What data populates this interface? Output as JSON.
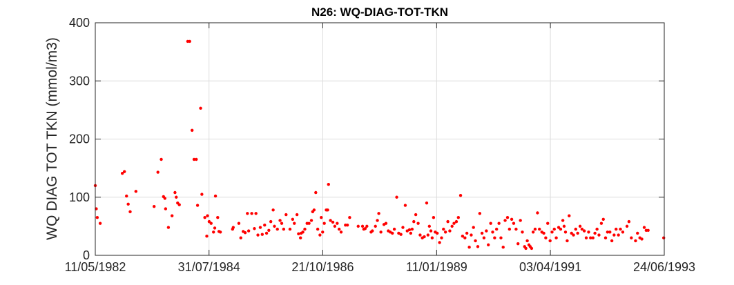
{
  "chart_data": {
    "type": "scatter",
    "title": "N26: WQ-DIAG-TOT-TKN",
    "xlabel": "",
    "ylabel": "WQ DIAG TOT TKN (mmol/m3)",
    "xlim": [
      "1982-05-11",
      "1993-06-24"
    ],
    "ylim": [
      0,
      400
    ],
    "x_ticks": [
      "11/05/1982",
      "31/07/1984",
      "21/10/1986",
      "11/01/1989",
      "03/04/1991",
      "24/06/1993"
    ],
    "y_ticks": [
      "0",
      "100",
      "200",
      "300",
      "400"
    ],
    "grid": true,
    "marker_color": "#ff0000",
    "series": [
      {
        "points": [
          [
            "1982-05-11",
            120
          ],
          [
            "1982-05-18",
            80
          ],
          [
            "1982-05-25",
            65
          ],
          [
            "1982-06-15",
            55
          ],
          [
            "1982-11-20",
            141
          ],
          [
            "1982-12-05",
            144
          ],
          [
            "1982-12-20",
            102
          ],
          [
            "1983-01-01",
            88
          ],
          [
            "1983-01-15",
            75
          ],
          [
            "1983-02-25",
            110
          ],
          [
            "1983-07-05",
            84
          ],
          [
            "1983-08-01",
            143
          ],
          [
            "1983-08-25",
            165
          ],
          [
            "1983-09-10",
            101
          ],
          [
            "1983-09-20",
            98
          ],
          [
            "1983-09-25",
            80
          ],
          [
            "1983-10-15",
            48
          ],
          [
            "1983-11-10",
            68
          ],
          [
            "1983-12-01",
            108
          ],
          [
            "1983-12-10",
            100
          ],
          [
            "1983-12-20",
            90
          ],
          [
            "1984-01-01",
            87
          ],
          [
            "1984-03-01",
            368
          ],
          [
            "1984-03-15",
            368
          ],
          [
            "1984-04-01",
            215
          ],
          [
            "1984-04-15",
            165
          ],
          [
            "1984-05-01",
            165
          ],
          [
            "1984-05-10",
            86
          ],
          [
            "1984-06-01",
            253
          ],
          [
            "1984-06-10",
            105
          ],
          [
            "1984-07-01",
            65
          ],
          [
            "1984-07-15",
            33
          ],
          [
            "1984-07-20",
            68
          ],
          [
            "1984-08-01",
            58
          ],
          [
            "1984-08-15",
            55
          ],
          [
            "1984-09-01",
            40
          ],
          [
            "1984-09-10",
            47
          ],
          [
            "1984-09-15",
            102
          ],
          [
            "1984-10-01",
            65
          ],
          [
            "1984-10-10",
            41
          ],
          [
            "1984-10-20",
            40
          ],
          [
            "1985-01-15",
            45
          ],
          [
            "1985-01-20",
            48
          ],
          [
            "1985-03-01",
            55
          ],
          [
            "1985-03-15",
            30
          ],
          [
            "1985-04-01",
            41
          ],
          [
            "1985-04-15",
            39
          ],
          [
            "1985-05-01",
            72
          ],
          [
            "1985-05-10",
            42
          ],
          [
            "1985-06-01",
            72
          ],
          [
            "1985-06-20",
            46
          ],
          [
            "1985-07-01",
            72
          ],
          [
            "1985-07-15",
            35
          ],
          [
            "1985-08-01",
            48
          ],
          [
            "1985-08-15",
            36
          ],
          [
            "1985-09-01",
            52
          ],
          [
            "1985-09-15",
            38
          ],
          [
            "1985-10-01",
            43
          ],
          [
            "1985-10-15",
            58
          ],
          [
            "1985-11-01",
            78
          ],
          [
            "1985-11-10",
            50
          ],
          [
            "1985-12-01",
            45
          ],
          [
            "1985-12-20",
            60
          ],
          [
            "1986-01-01",
            55
          ],
          [
            "1986-01-15",
            45
          ],
          [
            "1986-02-01",
            70
          ],
          [
            "1986-03-01",
            45
          ],
          [
            "1986-03-20",
            62
          ],
          [
            "1986-04-01",
            55
          ],
          [
            "1986-04-20",
            70
          ],
          [
            "1986-05-01",
            37
          ],
          [
            "1986-05-15",
            30
          ],
          [
            "1986-05-20",
            38
          ],
          [
            "1986-06-01",
            40
          ],
          [
            "1986-06-15",
            45
          ],
          [
            "1986-07-01",
            55
          ],
          [
            "1986-07-15",
            55
          ],
          [
            "1986-08-01",
            60
          ],
          [
            "1986-08-10",
            75
          ],
          [
            "1986-08-20",
            78
          ],
          [
            "1986-09-01",
            108
          ],
          [
            "1986-09-15",
            45
          ],
          [
            "1986-10-01",
            35
          ],
          [
            "1986-10-10",
            65
          ],
          [
            "1986-10-20",
            40
          ],
          [
            "1986-11-01",
            55
          ],
          [
            "1986-11-15",
            78
          ],
          [
            "1986-11-25",
            78
          ],
          [
            "1986-12-01",
            122
          ],
          [
            "1986-12-15",
            60
          ],
          [
            "1987-01-01",
            57
          ],
          [
            "1987-01-15",
            50
          ],
          [
            "1987-02-01",
            55
          ],
          [
            "1987-02-15",
            45
          ],
          [
            "1987-03-01",
            40
          ],
          [
            "1987-04-01",
            52
          ],
          [
            "1987-04-15",
            52
          ],
          [
            "1987-05-01",
            65
          ],
          [
            "1987-07-01",
            50
          ],
          [
            "1987-08-01",
            50
          ],
          [
            "1987-08-10",
            45
          ],
          [
            "1987-08-20",
            46
          ],
          [
            "1987-09-01",
            50
          ],
          [
            "1987-10-01",
            40
          ],
          [
            "1987-10-10",
            42
          ],
          [
            "1987-11-01",
            50
          ],
          [
            "1987-11-15",
            60
          ],
          [
            "1987-11-25",
            72
          ],
          [
            "1987-12-10",
            40
          ],
          [
            "1988-01-01",
            53
          ],
          [
            "1988-01-15",
            55
          ],
          [
            "1988-02-01",
            42
          ],
          [
            "1988-02-15",
            40
          ],
          [
            "1988-03-01",
            38
          ],
          [
            "1988-03-15",
            45
          ],
          [
            "1988-04-01",
            100
          ],
          [
            "1988-04-15",
            38
          ],
          [
            "1988-05-01",
            36
          ],
          [
            "1988-05-15",
            48
          ],
          [
            "1988-06-01",
            86
          ],
          [
            "1988-06-15",
            42
          ],
          [
            "1988-07-01",
            44
          ],
          [
            "1988-07-10",
            38
          ],
          [
            "1988-07-20",
            45
          ],
          [
            "1988-08-01",
            58
          ],
          [
            "1988-08-15",
            70
          ],
          [
            "1988-09-01",
            55
          ],
          [
            "1988-09-15",
            35
          ],
          [
            "1988-10-01",
            30
          ],
          [
            "1988-10-15",
            32
          ],
          [
            "1988-11-01",
            90
          ],
          [
            "1988-11-10",
            35
          ],
          [
            "1988-11-20",
            50
          ],
          [
            "1988-12-01",
            42
          ],
          [
            "1988-12-10",
            30
          ],
          [
            "1988-12-20",
            65
          ],
          [
            "1989-01-01",
            40
          ],
          [
            "1989-01-15",
            38
          ],
          [
            "1989-02-01",
            22
          ],
          [
            "1989-02-15",
            30
          ],
          [
            "1989-03-01",
            45
          ],
          [
            "1989-03-15",
            40
          ],
          [
            "1989-04-01",
            58
          ],
          [
            "1989-04-15",
            42
          ],
          [
            "1989-05-01",
            50
          ],
          [
            "1989-05-15",
            55
          ],
          [
            "1989-06-01",
            58
          ],
          [
            "1989-06-15",
            65
          ],
          [
            "1989-07-01",
            103
          ],
          [
            "1989-07-15",
            33
          ],
          [
            "1989-08-01",
            30
          ],
          [
            "1989-08-15",
            38
          ],
          [
            "1989-09-01",
            14
          ],
          [
            "1989-09-15",
            35
          ],
          [
            "1989-10-01",
            48
          ],
          [
            "1989-10-15",
            25
          ],
          [
            "1989-11-01",
            15
          ],
          [
            "1989-11-15",
            72
          ],
          [
            "1989-12-01",
            38
          ],
          [
            "1989-12-15",
            30
          ],
          [
            "1990-01-01",
            42
          ],
          [
            "1990-01-15",
            18
          ],
          [
            "1990-02-01",
            55
          ],
          [
            "1990-02-15",
            40
          ],
          [
            "1990-03-01",
            30
          ],
          [
            "1990-03-15",
            45
          ],
          [
            "1990-04-01",
            55
          ],
          [
            "1990-04-15",
            30
          ],
          [
            "1990-05-01",
            14
          ],
          [
            "1990-05-15",
            60
          ],
          [
            "1990-06-01",
            65
          ],
          [
            "1990-06-15",
            45
          ],
          [
            "1990-07-01",
            62
          ],
          [
            "1990-07-15",
            55
          ],
          [
            "1990-08-01",
            45
          ],
          [
            "1990-08-15",
            20
          ],
          [
            "1990-09-01",
            60
          ],
          [
            "1990-09-15",
            40
          ],
          [
            "1990-10-01",
            15
          ],
          [
            "1990-10-10",
            12
          ],
          [
            "1990-10-20",
            25
          ],
          [
            "1990-11-01",
            18
          ],
          [
            "1990-11-10",
            15
          ],
          [
            "1990-11-20",
            12
          ],
          [
            "1990-12-01",
            40
          ],
          [
            "1990-12-15",
            45
          ],
          [
            "1991-01-01",
            73
          ],
          [
            "1991-01-15",
            45
          ],
          [
            "1991-02-01",
            40
          ],
          [
            "1991-02-15",
            38
          ],
          [
            "1991-03-01",
            30
          ],
          [
            "1991-03-15",
            55
          ],
          [
            "1991-04-01",
            25
          ],
          [
            "1991-04-15",
            40
          ],
          [
            "1991-05-01",
            45
          ],
          [
            "1991-05-15",
            30
          ],
          [
            "1991-06-01",
            48
          ],
          [
            "1991-06-15",
            45
          ],
          [
            "1991-07-01",
            60
          ],
          [
            "1991-07-10",
            50
          ],
          [
            "1991-07-20",
            40
          ],
          [
            "1991-08-01",
            25
          ],
          [
            "1991-08-15",
            68
          ],
          [
            "1991-09-01",
            38
          ],
          [
            "1991-09-15",
            35
          ],
          [
            "1991-10-01",
            45
          ],
          [
            "1991-10-15",
            38
          ],
          [
            "1991-11-01",
            50
          ],
          [
            "1991-11-15",
            45
          ],
          [
            "1991-12-01",
            42
          ],
          [
            "1991-12-15",
            30
          ],
          [
            "1992-01-01",
            40
          ],
          [
            "1992-01-15",
            30
          ],
          [
            "1992-02-01",
            30
          ],
          [
            "1992-02-15",
            38
          ],
          [
            "1992-03-01",
            45
          ],
          [
            "1992-03-15",
            35
          ],
          [
            "1992-04-01",
            55
          ],
          [
            "1992-04-15",
            62
          ],
          [
            "1992-05-01",
            30
          ],
          [
            "1992-05-15",
            40
          ],
          [
            "1992-06-01",
            40
          ],
          [
            "1992-06-15",
            25
          ],
          [
            "1992-07-01",
            35
          ],
          [
            "1992-07-15",
            45
          ],
          [
            "1992-08-01",
            35
          ],
          [
            "1992-08-15",
            45
          ],
          [
            "1992-09-01",
            40
          ],
          [
            "1992-10-01",
            50
          ],
          [
            "1992-10-15",
            58
          ],
          [
            "1992-11-01",
            30
          ],
          [
            "1992-12-01",
            25
          ],
          [
            "1992-12-15",
            38
          ],
          [
            "1993-01-01",
            30
          ],
          [
            "1993-01-15",
            28
          ],
          [
            "1993-02-01",
            48
          ],
          [
            "1993-02-15",
            43
          ],
          [
            "1993-03-01",
            43
          ],
          [
            "1993-06-20",
            30
          ]
        ]
      }
    ]
  }
}
